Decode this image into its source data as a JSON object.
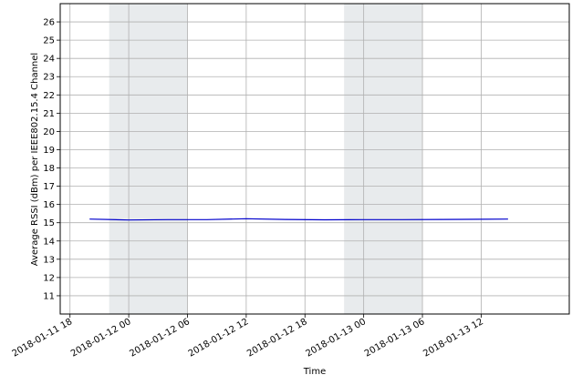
{
  "chart_data": {
    "type": "line",
    "title": "",
    "xlabel": "Time",
    "ylabel": "Average RSSI (dBm) per IEEE802.15.4 Channel",
    "xlim": [
      "2018-01-11 17:00",
      "2018-01-13 21:00"
    ],
    "ylim": [
      10,
      27
    ],
    "x_ticks": [
      "2018-01-11 18",
      "2018-01-12 00",
      "2018-01-12 06",
      "2018-01-12 12",
      "2018-01-12 18",
      "2018-01-13 00",
      "2018-01-13 06",
      "2018-01-13 12"
    ],
    "y_ticks": [
      11,
      12,
      13,
      14,
      15,
      16,
      17,
      18,
      19,
      20,
      21,
      22,
      23,
      24,
      25,
      26
    ],
    "grid": true,
    "shaded_periods": [
      {
        "start": "2018-01-11 22:00",
        "end": "2018-01-12 06:00",
        "color": "#e8ebed"
      },
      {
        "start": "2018-01-12 22:00",
        "end": "2018-01-13 06:00",
        "color": "#e8ebed"
      }
    ],
    "series": [
      {
        "color": "#0000cc",
        "x": [
          "2018-01-11 20:00",
          "2018-01-12 00:00",
          "2018-01-12 04:00",
          "2018-01-12 08:00",
          "2018-01-12 12:00",
          "2018-01-12 16:00",
          "2018-01-12 20:00",
          "2018-01-13 00:00",
          "2018-01-13 04:00",
          "2018-01-13 08:00",
          "2018-01-13 12:00",
          "2018-01-13 14:45"
        ],
        "y": [
          15.2,
          15.15,
          15.17,
          15.17,
          15.22,
          15.18,
          15.16,
          15.17,
          15.17,
          15.18,
          15.19,
          15.2
        ]
      }
    ]
  }
}
